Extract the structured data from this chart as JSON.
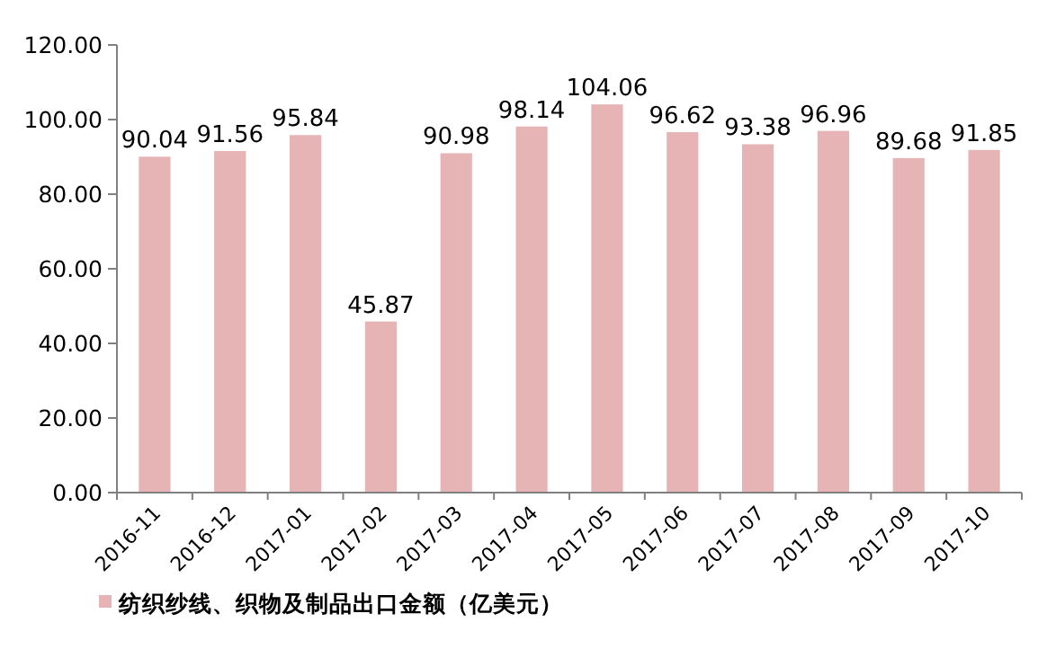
{
  "chart_data": {
    "type": "bar",
    "categories": [
      "2016-11",
      "2016-12",
      "2017-01",
      "2017-02",
      "2017-03",
      "2017-04",
      "2017-05",
      "2017-06",
      "2017-07",
      "2017-08",
      "2017-09",
      "2017-10"
    ],
    "series": [
      {
        "name": "纺织纱线、织物及制品出口金额（亿美元）",
        "color": "#e6b4b4",
        "values": [
          90.04,
          91.56,
          95.84,
          45.87,
          90.98,
          98.14,
          104.06,
          96.62,
          93.38,
          96.96,
          89.68,
          91.85
        ]
      }
    ],
    "ylim": [
      0,
      120
    ],
    "yticks": [
      {
        "value": 0,
        "label": "0.00"
      },
      {
        "value": 20,
        "label": "20.00"
      },
      {
        "value": 40,
        "label": "40.00"
      },
      {
        "value": 60,
        "label": "60.00"
      },
      {
        "value": 80,
        "label": "80.00"
      },
      {
        "value": 100,
        "label": "100.00"
      },
      {
        "value": 120,
        "label": "120.00"
      }
    ],
    "data_labels": true,
    "legend": "bottom left",
    "grid": false
  }
}
